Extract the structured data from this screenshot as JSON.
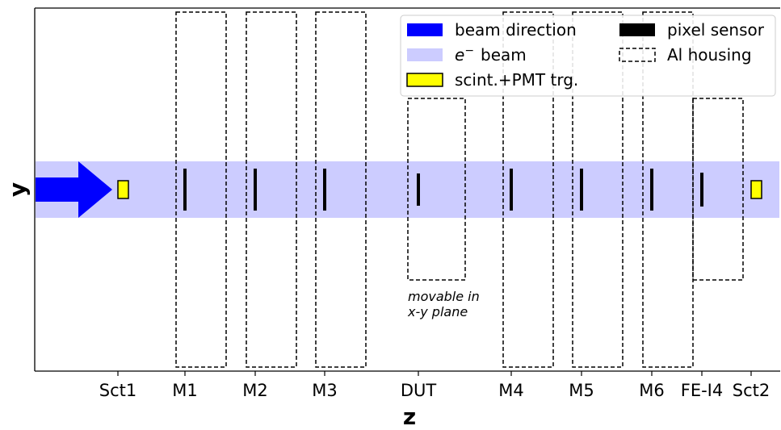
{
  "axes": {
    "xlabel": "z",
    "ylabel": "y"
  },
  "stations": [
    {
      "label": "Sct1",
      "kind": "scintillator"
    },
    {
      "label": "M1",
      "kind": "sensor"
    },
    {
      "label": "M2",
      "kind": "sensor"
    },
    {
      "label": "M3",
      "kind": "sensor"
    },
    {
      "label": "DUT",
      "kind": "sensor"
    },
    {
      "label": "M4",
      "kind": "sensor"
    },
    {
      "label": "M5",
      "kind": "sensor"
    },
    {
      "label": "M6",
      "kind": "sensor"
    },
    {
      "label": "FE-I4",
      "kind": "sensor"
    },
    {
      "label": "Sct2",
      "kind": "scintillator"
    }
  ],
  "annotation": {
    "line1": "movable in",
    "line2": "x-y plane"
  },
  "legend": {
    "placement": "top-right",
    "entries": [
      {
        "label": "beam direction",
        "color": "#0000ff",
        "style": "filled"
      },
      {
        "label": "pixel sensor",
        "color": "#000000",
        "style": "filled"
      },
      {
        "label": "beam",
        "prefix": "e",
        "superscript": "−",
        "color": "#ccccff",
        "style": "filled"
      },
      {
        "label": "Al housing",
        "color": "#000000",
        "style": "dashed"
      },
      {
        "label": "scint.+PMT trg.",
        "color": "#ffff00",
        "style": "outlined"
      }
    ]
  },
  "colors": {
    "beam_arrow": "#0000ff",
    "beam_band": "#ccccff",
    "sensor": "#000000",
    "scintillator_fill": "#ffff00",
    "housing_stroke": "#000000"
  }
}
